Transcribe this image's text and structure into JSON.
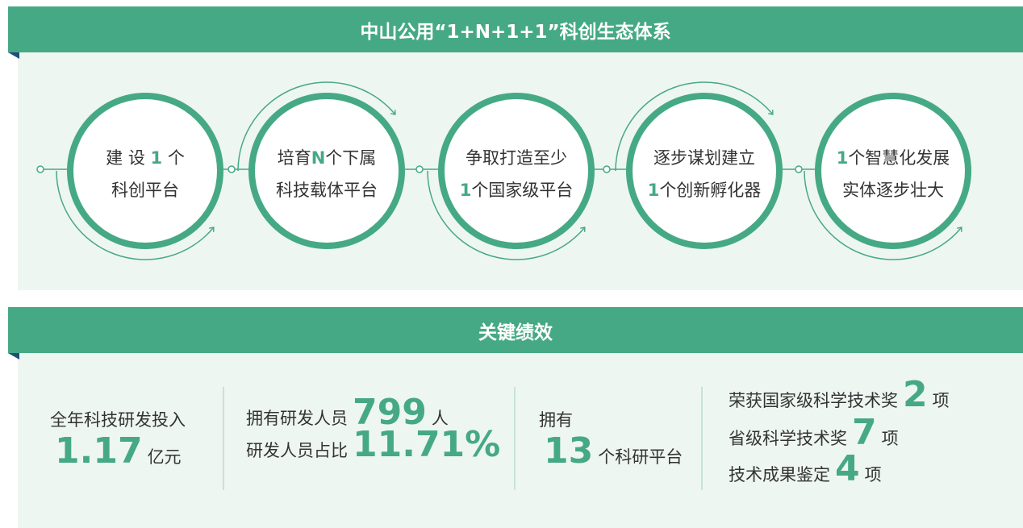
{
  "section1": {
    "title": "中山公用“1+N+1+1”科创生态体系",
    "circles": [
      {
        "lines": [
          {
            "pre": "建 设 ",
            "em": "1",
            "post": " 个"
          },
          {
            "pre": "科创平台"
          }
        ]
      },
      {
        "lines": [
          {
            "pre": "培育",
            "em": "N",
            "post": "个下属"
          },
          {
            "pre": "科技载体平台"
          }
        ]
      },
      {
        "lines": [
          {
            "pre": "争取打造至少"
          },
          {
            "em": "1",
            "post": "个国家级平台"
          }
        ]
      },
      {
        "lines": [
          {
            "pre": "逐步谋划建立"
          },
          {
            "em": "1",
            "post": "个创新孵化器"
          }
        ]
      },
      {
        "lines": [
          {
            "em": "1",
            "post": "个智慧化发展"
          },
          {
            "pre": "实体逐步壮大"
          }
        ]
      }
    ]
  },
  "section2": {
    "title": "关键绩效",
    "columns": [
      {
        "lines": [
          {
            "pre": "全年科技研发投入"
          },
          {
            "em": "1.17",
            "post": "亿元"
          }
        ]
      },
      {
        "lines": [
          {
            "pre": "拥有研发人员",
            "em": "799",
            "post": "人"
          },
          {
            "pre": "研发人员占比",
            "em": "11.71%"
          }
        ]
      },
      {
        "lines": [
          {
            "pre": "拥有"
          },
          {
            "em": "13",
            "post": "个科研平台"
          }
        ]
      },
      {
        "lines": [
          {
            "pre": "荣获国家级科学技术奖",
            "em": "2",
            "post": "项"
          },
          {
            "pre": "省级科学技术奖",
            "em": "7",
            "post": "项"
          },
          {
            "pre": "技术成果鉴定",
            "em": "4",
            "post": "项"
          }
        ]
      }
    ]
  }
}
